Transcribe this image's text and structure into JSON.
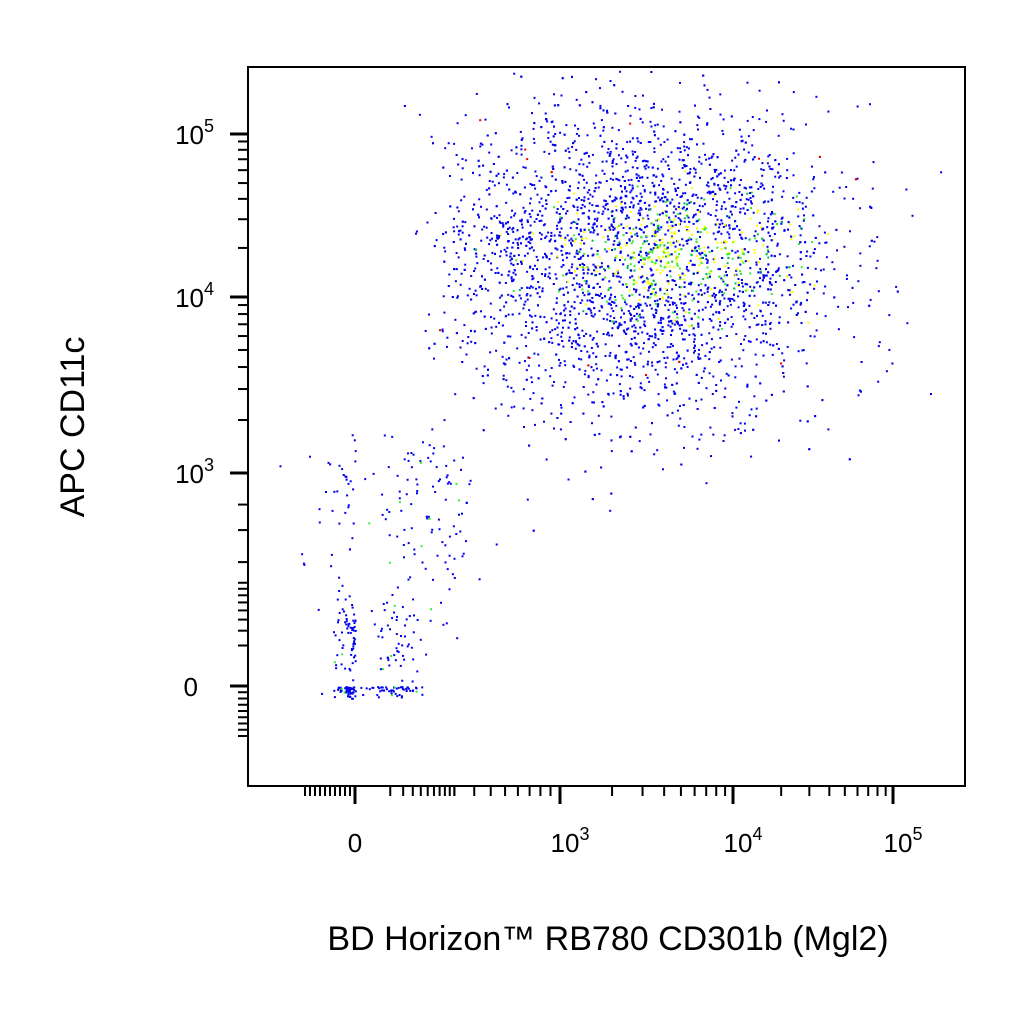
{
  "chart_data": {
    "type": "scatter",
    "title": "",
    "xlabel": "BD Horizon™ RB780 CD301b (Mgl2)",
    "ylabel": "APC CD11c",
    "x_scale": "biexponential",
    "y_scale": "biexponential",
    "xlim": [
      -300,
      150000
    ],
    "ylim": [
      -300,
      180000
    ],
    "x_ticks": [
      {
        "value": 0,
        "base": "0",
        "exp": ""
      },
      {
        "value": 1000,
        "base": "10",
        "exp": "3"
      },
      {
        "value": 10000,
        "base": "10",
        "exp": "4"
      },
      {
        "value": 100000,
        "base": "10",
        "exp": "5"
      }
    ],
    "y_ticks": [
      {
        "value": 0,
        "base": "0",
        "exp": ""
      },
      {
        "value": 1000,
        "base": "10",
        "exp": "3"
      },
      {
        "value": 10000,
        "base": "10",
        "exp": "4"
      },
      {
        "value": 100000,
        "base": "10",
        "exp": "5"
      }
    ],
    "density_colors": [
      "#0000ee",
      "#00bb55",
      "#33ee33",
      "#ffff00",
      "#ff6600",
      "#ee0000"
    ],
    "populations": [
      {
        "x_center": 0,
        "x_spread": 40,
        "y_center": 0,
        "y_spread": 60,
        "fraction": 0.05
      },
      {
        "x_center": 40,
        "x_spread": 120,
        "y_center": 600,
        "y_spread": 500,
        "fraction": 0.04
      },
      {
        "x_center": 3000,
        "x_spread": 1.25,
        "y_center": 17000,
        "y_spread": 0.45,
        "fraction": 0.91
      }
    ],
    "grid": false,
    "legend": "none"
  }
}
